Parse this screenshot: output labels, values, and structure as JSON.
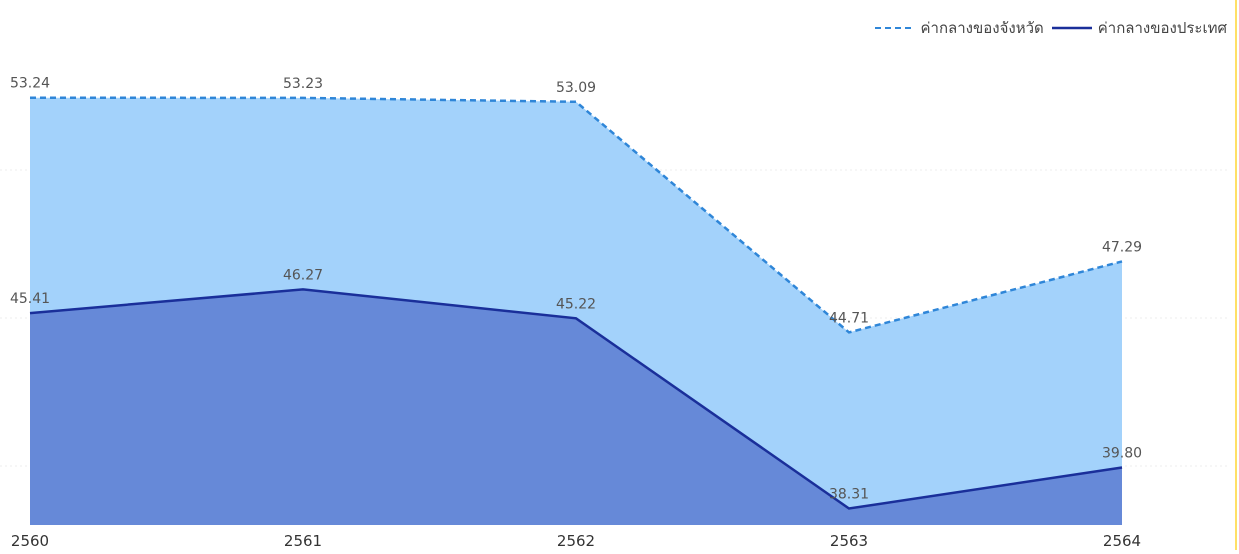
{
  "chart_data": {
    "type": "area",
    "categories": [
      "2560",
      "2561",
      "2562",
      "2563",
      "2564"
    ],
    "series": [
      {
        "name": "ค่ากลางของจังหวัด",
        "values": [
          53.24,
          53.23,
          53.09,
          44.71,
          47.29
        ],
        "line_color": "#2f86d8",
        "fill_color": "#a3d2fb",
        "line_style": "dashed"
      },
      {
        "name": "ค่ากลางของประเทศ",
        "values": [
          45.41,
          46.27,
          45.22,
          38.31,
          39.8
        ],
        "line_color": "#1a2f9a",
        "fill_color": "#6689d8",
        "line_style": "solid"
      }
    ],
    "data_labels": [
      [
        "53.24",
        "53.23",
        "53.09",
        "44.71",
        "47.29"
      ],
      [
        "45.41",
        "46.27",
        "45.22",
        "38.31",
        "39.80"
      ]
    ],
    "ylim": [
      38.0,
      54.5
    ],
    "grid": false,
    "legend_position": "top-right"
  }
}
